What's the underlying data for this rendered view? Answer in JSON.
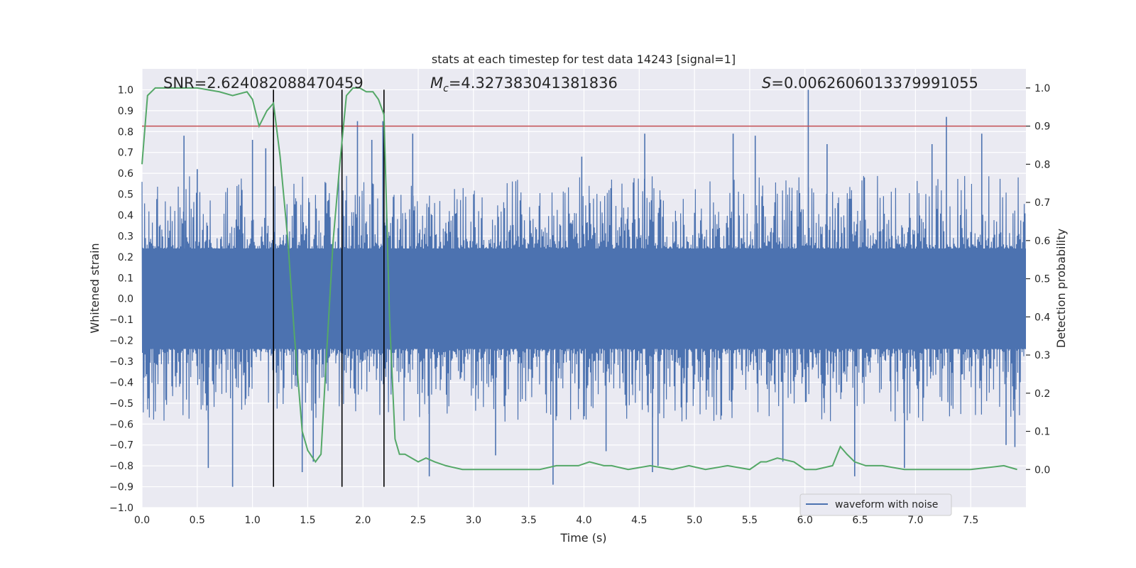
{
  "chart_data": {
    "type": "line",
    "title": "stats at each timestep for test data 14243 [signal=1]",
    "xlabel": "Time (s)",
    "ylabel": "Whitened strain",
    "y2label": "Detection probability",
    "xlim": [
      0.0,
      8.0
    ],
    "ylim": [
      -1.0,
      1.1
    ],
    "y2lim": [
      -0.1,
      1.05
    ],
    "x_ticks": [
      0.0,
      0.5,
      1.0,
      1.5,
      2.0,
      2.5,
      3.0,
      3.5,
      4.0,
      4.5,
      5.0,
      5.5,
      6.0,
      6.5,
      7.0,
      7.5
    ],
    "y_ticks": [
      -1.0,
      -0.9,
      -0.8,
      -0.7,
      -0.6,
      -0.5,
      -0.4,
      -0.3,
      -0.2,
      -0.1,
      0.0,
      0.1,
      0.2,
      0.3,
      0.4,
      0.5,
      0.6,
      0.7,
      0.8,
      0.9,
      1.0
    ],
    "y2_ticks": [
      0.0,
      0.1,
      0.2,
      0.3,
      0.4,
      0.5,
      0.6,
      0.7,
      0.8,
      0.9,
      1.0
    ],
    "grid": true,
    "legend": {
      "position": "lower-right",
      "entries": [
        "waveform with noise"
      ]
    },
    "annotations": {
      "snr": "SNR=2.624082088470459",
      "mc_symbol": "M",
      "mc_sub": "c",
      "mc_value": "=4.327383041381836",
      "s_symbol": "S",
      "s_value": "=0.0062606013379991055"
    },
    "threshold_line": {
      "axis": "y2",
      "value": 0.9,
      "color": "#c44e52"
    },
    "vertical_lines": [
      1.19,
      1.81,
      2.19
    ],
    "waveform": {
      "name": "waveform with noise",
      "color": "#4c72b0",
      "samples": 2048,
      "core_amplitude": 0.24,
      "spikes": [
        {
          "x": 0.38,
          "y": 0.78
        },
        {
          "x": 0.5,
          "y": 0.62
        },
        {
          "x": 0.82,
          "y": -0.9
        },
        {
          "x": 0.6,
          "y": -0.81
        },
        {
          "x": 1.0,
          "y": 0.76
        },
        {
          "x": 1.12,
          "y": 0.72
        },
        {
          "x": 1.19,
          "y": 0.74
        },
        {
          "x": 1.45,
          "y": -0.83
        },
        {
          "x": 1.55,
          "y": -0.78
        },
        {
          "x": 1.95,
          "y": 0.85
        },
        {
          "x": 2.08,
          "y": 0.76
        },
        {
          "x": 2.18,
          "y": 0.85
        },
        {
          "x": 2.45,
          "y": 0.79
        },
        {
          "x": 2.6,
          "y": -0.85
        },
        {
          "x": 3.2,
          "y": -0.75
        },
        {
          "x": 3.72,
          "y": -0.89
        },
        {
          "x": 3.98,
          "y": 0.68
        },
        {
          "x": 4.2,
          "y": -0.73
        },
        {
          "x": 4.55,
          "y": 0.79
        },
        {
          "x": 4.62,
          "y": -0.83
        },
        {
          "x": 4.67,
          "y": -0.8
        },
        {
          "x": 5.35,
          "y": 0.79
        },
        {
          "x": 5.55,
          "y": 0.78
        },
        {
          "x": 5.8,
          "y": -0.78
        },
        {
          "x": 6.03,
          "y": 1.0
        },
        {
          "x": 6.2,
          "y": 0.74
        },
        {
          "x": 6.45,
          "y": -0.85
        },
        {
          "x": 6.9,
          "y": -0.81
        },
        {
          "x": 7.15,
          "y": 0.74
        },
        {
          "x": 7.28,
          "y": 0.87
        },
        {
          "x": 7.6,
          "y": 0.79
        },
        {
          "x": 7.82,
          "y": -0.7
        },
        {
          "x": 7.9,
          "y": -0.71
        }
      ]
    },
    "probability": {
      "color": "#55a868",
      "x": [
        0.0,
        0.05,
        0.12,
        0.3,
        0.5,
        0.7,
        0.82,
        0.95,
        1.0,
        1.06,
        1.13,
        1.19,
        1.25,
        1.32,
        1.38,
        1.45,
        1.5,
        1.57,
        1.62,
        1.67,
        1.73,
        1.79,
        1.85,
        1.91,
        1.97,
        2.03,
        2.09,
        2.14,
        2.19,
        2.24,
        2.29,
        2.33,
        2.38,
        2.44,
        2.5,
        2.57,
        2.65,
        2.75,
        2.9,
        3.2,
        3.6,
        3.75,
        3.95,
        4.05,
        4.18,
        4.25,
        4.4,
        4.6,
        4.8,
        4.95,
        5.1,
        5.3,
        5.5,
        5.6,
        5.65,
        5.75,
        5.9,
        6.0,
        6.1,
        6.25,
        6.32,
        6.38,
        6.45,
        6.55,
        6.7,
        6.9,
        7.2,
        7.5,
        7.8,
        7.92
      ],
      "y": [
        0.8,
        0.98,
        1.0,
        1.0,
        1.0,
        0.99,
        0.98,
        0.99,
        0.97,
        0.9,
        0.94,
        0.96,
        0.82,
        0.6,
        0.35,
        0.1,
        0.05,
        0.02,
        0.04,
        0.3,
        0.6,
        0.8,
        0.98,
        1.0,
        1.0,
        0.99,
        0.99,
        0.97,
        0.93,
        0.4,
        0.08,
        0.04,
        0.04,
        0.03,
        0.02,
        0.03,
        0.02,
        0.01,
        0.0,
        0.0,
        0.0,
        0.01,
        0.01,
        0.02,
        0.01,
        0.01,
        0.0,
        0.01,
        0.0,
        0.01,
        0.0,
        0.01,
        0.0,
        0.02,
        0.02,
        0.03,
        0.02,
        0.0,
        0.0,
        0.01,
        0.06,
        0.04,
        0.02,
        0.01,
        0.01,
        0.0,
        0.0,
        0.0,
        0.01,
        0.0
      ]
    }
  }
}
